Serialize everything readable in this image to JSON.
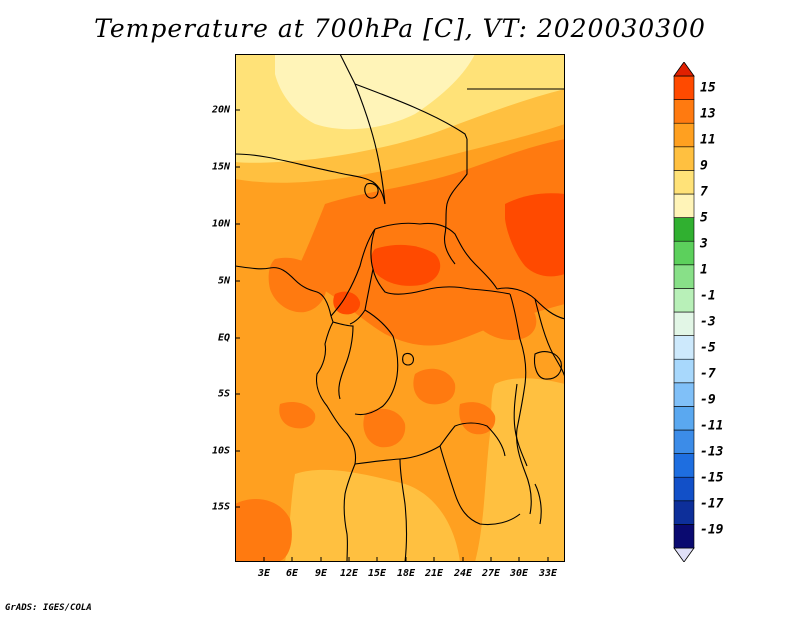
{
  "title": "Temperature at 700hPa [C], VT: 2020030300",
  "footer": "GrADS: IGES/COLA",
  "map": {
    "lat_labels": [
      "20N",
      "15N",
      "10N",
      "5N",
      "EQ",
      "5S",
      "10S",
      "15S"
    ],
    "lon_labels": [
      "3E",
      "6E",
      "9E",
      "12E",
      "15E",
      "18E",
      "21E",
      "24E",
      "27E",
      "30E",
      "33E"
    ]
  },
  "colorbar": {
    "labels": [
      "15",
      "13",
      "11",
      "9",
      "7",
      "5",
      "3",
      "1",
      "-1",
      "-3",
      "-5",
      "-7",
      "-9",
      "-11",
      "-13",
      "-15",
      "-17",
      "-19"
    ],
    "colors": [
      "#e0e0f8",
      "#0a0a70",
      "#0d2f9a",
      "#1250c8",
      "#1e6ee0",
      "#3c8ce8",
      "#5aa8f0",
      "#80c0f8",
      "#a8d8fc",
      "#cde9fc",
      "#e2f6e6",
      "#b8f0b8",
      "#88e088",
      "#5cd05c",
      "#30b030",
      "#fff4b8",
      "#ffe278",
      "#ffc040",
      "#ffa020",
      "#ff7a10",
      "#ff4a00",
      "#e02000"
    ]
  },
  "palette": {
    "t3": "#fff4b8",
    "t5": "#ffe278",
    "t7": "#ffc040",
    "t9": "#ffa020",
    "t11": "#ff7a10",
    "t13": "#ff4a00"
  }
}
